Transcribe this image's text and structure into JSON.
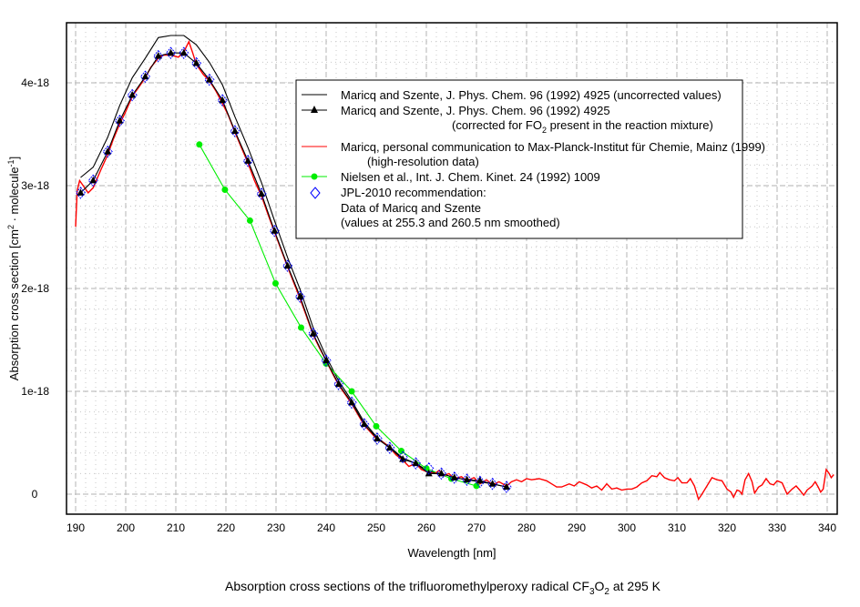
{
  "chart_data": {
    "type": "line",
    "title": {
      "pre": "Absorption cross sections of the trifluoromethylperoxy radical CF",
      "sub1": "3",
      "mid": "O",
      "sub2": "2",
      "post": " at 295 K"
    },
    "xlabel": "Wavelength [nm]",
    "ylabel": {
      "pre": "Absorption cross section [cm",
      "sup1": "2",
      "mid": " · molecule",
      "sup2": "-1",
      "post": "]"
    },
    "xlim": [
      188,
      342
    ],
    "ylim": [
      -2e-19,
      4.6e-18
    ],
    "x_ticks": [
      190,
      200,
      210,
      220,
      230,
      240,
      250,
      260,
      270,
      280,
      290,
      300,
      310,
      320,
      330,
      340
    ],
    "x_tick_labels": [
      "190",
      "200",
      "210",
      "220",
      "230",
      "240",
      "250",
      "260",
      "270",
      "280",
      "290",
      "300",
      "310",
      "320",
      "330",
      "340"
    ],
    "y_ticks": [
      0,
      1e-18,
      2e-18,
      3e-18,
      4e-18
    ],
    "y_tick_labels": [
      "0",
      "1e-18",
      "2e-18",
      "3e-18",
      "4e-18"
    ],
    "grid": true,
    "legend_position": "top-right",
    "y_unit_scale": 1e-18,
    "series": [
      {
        "name": "Maricq and Szente, J. Phys. Chem. 96 (1992) 4925 (uncorrected values)",
        "color": "#000000",
        "marker": "none",
        "points": [
          [
            191,
            3.08
          ],
          [
            193.5,
            3.18
          ],
          [
            196.4,
            3.47
          ],
          [
            198.8,
            3.78
          ],
          [
            201.3,
            4.05
          ],
          [
            203.9,
            4.24
          ],
          [
            206.5,
            4.44
          ],
          [
            209,
            4.46
          ],
          [
            211.6,
            4.46
          ],
          [
            214.1,
            4.37
          ],
          [
            216.7,
            4.2
          ],
          [
            219.3,
            3.98
          ],
          [
            221.8,
            3.67
          ],
          [
            224.4,
            3.37
          ],
          [
            227.1,
            3.03
          ],
          [
            229.7,
            2.66
          ],
          [
            232.3,
            2.3
          ],
          [
            234.8,
            1.99
          ],
          [
            237.4,
            1.62
          ],
          [
            240,
            1.34
          ],
          [
            242.5,
            1.1
          ],
          [
            245.1,
            0.91
          ],
          [
            247.6,
            0.7
          ],
          [
            250.2,
            0.55
          ],
          [
            252.7,
            0.46
          ],
          [
            255.3,
            0.35
          ],
          [
            257.9,
            0.3
          ],
          [
            260.5,
            0.22
          ],
          [
            263,
            0.2
          ],
          [
            265.6,
            0.16
          ],
          [
            268.1,
            0.14
          ],
          [
            270.7,
            0.12
          ],
          [
            273.2,
            0.1
          ],
          [
            276,
            0.07
          ]
        ]
      },
      {
        "name": "Maricq and Szente, J. Phys. Chem. 96 (1992) 4925",
        "name_line2": {
          "pre": "(corrected for FO",
          "sub": "2",
          "post": " present in the reaction mixture)"
        },
        "color": "#000000",
        "marker": "triangle",
        "points": [
          [
            191,
            2.93
          ],
          [
            193.5,
            3.05
          ],
          [
            196.4,
            3.33
          ],
          [
            198.8,
            3.63
          ],
          [
            201.3,
            3.88
          ],
          [
            203.9,
            4.06
          ],
          [
            206.5,
            4.26
          ],
          [
            209,
            4.29
          ],
          [
            211.6,
            4.29
          ],
          [
            214.1,
            4.19
          ],
          [
            216.7,
            4.03
          ],
          [
            219.3,
            3.83
          ],
          [
            221.8,
            3.53
          ],
          [
            224.4,
            3.24
          ],
          [
            227.1,
            2.92
          ],
          [
            229.7,
            2.56
          ],
          [
            232.3,
            2.22
          ],
          [
            234.8,
            1.92
          ],
          [
            237.4,
            1.56
          ],
          [
            240,
            1.3
          ],
          [
            242.5,
            1.07
          ],
          [
            245.1,
            0.89
          ],
          [
            247.6,
            0.68
          ],
          [
            250.2,
            0.54
          ],
          [
            252.7,
            0.45
          ],
          [
            255.3,
            0.34
          ],
          [
            257.9,
            0.3
          ],
          [
            260.5,
            0.2
          ],
          [
            263,
            0.2
          ],
          [
            265.6,
            0.16
          ],
          [
            268.1,
            0.14
          ],
          [
            270.7,
            0.13
          ],
          [
            273.2,
            0.1
          ],
          [
            276,
            0.07
          ]
        ]
      },
      {
        "name": "Maricq, personal communication to Max-Planck-Institut für Chemie, Mainz (1999)",
        "name_line2": "(high-resolution data)",
        "color": "#ff0000",
        "marker": "none",
        "points": [
          [
            190,
            2.6
          ],
          [
            190.3,
            2.95
          ],
          [
            190.8,
            3.05
          ],
          [
            191.5,
            3.0
          ],
          [
            192.5,
            2.93
          ],
          [
            193.5,
            2.98
          ],
          [
            195,
            3.15
          ],
          [
            196.4,
            3.3
          ],
          [
            197.5,
            3.45
          ],
          [
            198.8,
            3.6
          ],
          [
            200,
            3.72
          ],
          [
            201.3,
            3.87
          ],
          [
            202.5,
            3.95
          ],
          [
            203.9,
            4.05
          ],
          [
            205,
            4.15
          ],
          [
            206.5,
            4.24
          ],
          [
            207.5,
            4.27
          ],
          [
            209,
            4.27
          ],
          [
            210.5,
            4.25
          ],
          [
            211.6,
            4.3
          ],
          [
            212.6,
            4.4
          ],
          [
            213.3,
            4.3
          ],
          [
            214.1,
            4.18
          ],
          [
            215.5,
            4.08
          ],
          [
            216.7,
            4.02
          ],
          [
            218,
            3.92
          ],
          [
            219.3,
            3.8
          ],
          [
            220.5,
            3.68
          ],
          [
            221.8,
            3.52
          ],
          [
            223,
            3.38
          ],
          [
            224.4,
            3.22
          ],
          [
            225.7,
            3.05
          ],
          [
            227.1,
            2.9
          ],
          [
            228.4,
            2.72
          ],
          [
            229.7,
            2.55
          ],
          [
            231,
            2.38
          ],
          [
            232.3,
            2.21
          ],
          [
            233.5,
            2.06
          ],
          [
            234.8,
            1.9
          ],
          [
            236,
            1.74
          ],
          [
            237.4,
            1.55
          ],
          [
            238.7,
            1.42
          ],
          [
            240,
            1.3
          ],
          [
            241.2,
            1.18
          ],
          [
            242.5,
            1.06
          ],
          [
            243.8,
            0.97
          ],
          [
            245.1,
            0.88
          ],
          [
            246.4,
            0.77
          ],
          [
            247.6,
            0.67
          ],
          [
            248.9,
            0.6
          ],
          [
            250.2,
            0.53
          ],
          [
            251.5,
            0.5
          ],
          [
            252.7,
            0.45
          ],
          [
            254,
            0.38
          ],
          [
            255.3,
            0.33
          ],
          [
            256.5,
            0.27
          ],
          [
            257.9,
            0.3
          ],
          [
            259,
            0.24
          ],
          [
            260.5,
            0.21
          ],
          [
            261.7,
            0.2
          ],
          [
            262.5,
            0.23
          ],
          [
            263.5,
            0.18
          ],
          [
            264.5,
            0.2
          ],
          [
            265.6,
            0.15
          ],
          [
            267,
            0.17
          ],
          [
            268.1,
            0.13
          ],
          [
            269.5,
            0.16
          ],
          [
            270.7,
            0.1
          ],
          [
            272,
            0.14
          ],
          [
            273.2,
            0.09
          ],
          [
            274.5,
            0.12
          ],
          [
            276,
            0.08
          ],
          [
            277,
            0.12
          ],
          [
            278,
            0.14
          ],
          [
            279,
            0.12
          ],
          [
            280,
            0.15
          ],
          [
            281,
            0.14
          ],
          [
            282.5,
            0.15
          ],
          [
            284,
            0.13
          ],
          [
            285,
            0.1
          ],
          [
            286,
            0.07
          ],
          [
            287,
            0.07
          ],
          [
            288.5,
            0.1
          ],
          [
            289.5,
            0.08
          ],
          [
            290.5,
            0.12
          ],
          [
            292,
            0.09
          ],
          [
            293,
            0.06
          ],
          [
            294,
            0.08
          ],
          [
            295,
            0.04
          ],
          [
            296,
            0.1
          ],
          [
            297,
            0.05
          ],
          [
            298,
            0.06
          ],
          [
            299,
            0.04
          ],
          [
            300,
            0.05
          ],
          [
            301,
            0.05
          ],
          [
            302,
            0.07
          ],
          [
            303,
            0.11
          ],
          [
            304,
            0.13
          ],
          [
            305,
            0.18
          ],
          [
            306,
            0.17
          ],
          [
            306.6,
            0.21
          ],
          [
            307.5,
            0.16
          ],
          [
            308.5,
            0.14
          ],
          [
            309.5,
            0.13
          ],
          [
            310.2,
            0.16
          ],
          [
            311,
            0.11
          ],
          [
            312,
            0.11
          ],
          [
            312.7,
            0.15
          ],
          [
            313.5,
            0.08
          ],
          [
            314.3,
            -0.05
          ],
          [
            315,
            0.0
          ],
          [
            316,
            0.08
          ],
          [
            317,
            0.16
          ],
          [
            318,
            0.14
          ],
          [
            319,
            0.13
          ],
          [
            320,
            0.05
          ],
          [
            320.8,
            0.02
          ],
          [
            321.3,
            -0.03
          ],
          [
            322,
            0.04
          ],
          [
            322.5,
            0.03
          ],
          [
            323,
            0.0
          ],
          [
            323.6,
            0.14
          ],
          [
            324.3,
            0.2
          ],
          [
            325,
            0.12
          ],
          [
            325.5,
            0.01
          ],
          [
            326.3,
            0.07
          ],
          [
            327,
            0.09
          ],
          [
            327.8,
            0.15
          ],
          [
            328.6,
            0.1
          ],
          [
            329.3,
            0.09
          ],
          [
            330,
            0.13
          ],
          [
            331,
            0.11
          ],
          [
            332,
            0.0
          ],
          [
            333,
            0.05
          ],
          [
            333.8,
            0.08
          ],
          [
            334.5,
            0.04
          ],
          [
            335.3,
            -0.01
          ],
          [
            336,
            0.04
          ],
          [
            337,
            0.08
          ],
          [
            337.6,
            0.12
          ],
          [
            338.2,
            0.07
          ],
          [
            338.7,
            0.02
          ],
          [
            339.2,
            0.05
          ],
          [
            339.8,
            0.24
          ],
          [
            340.4,
            0.2
          ],
          [
            340.8,
            0.16
          ],
          [
            341.3,
            0.19
          ]
        ]
      },
      {
        "name": "Nielsen et al., Int. J. Chem. Kinet. 24 (1992) 1009",
        "color": "#00ee00",
        "marker": "circle",
        "points": [
          [
            214.7,
            3.4
          ],
          [
            219.8,
            2.96
          ],
          [
            224.8,
            2.66
          ],
          [
            229.9,
            2.05
          ],
          [
            235,
            1.62
          ],
          [
            240,
            1.27
          ],
          [
            245.1,
            1.0
          ],
          [
            250,
            0.66
          ],
          [
            255,
            0.42
          ],
          [
            260,
            0.25
          ],
          [
            265,
            0.15
          ],
          [
            270,
            0.08
          ]
        ]
      },
      {
        "name": "JPL-2010 recommendation:",
        "name_line2": "Data of Maricq and Szente",
        "name_line3": "(values at 255.3 and 260.5 nm smoothed)",
        "color": "#0000ff",
        "marker": "diamond",
        "points": [
          [
            191,
            2.93
          ],
          [
            193.5,
            3.05
          ],
          [
            196.4,
            3.33
          ],
          [
            198.8,
            3.63
          ],
          [
            201.3,
            3.88
          ],
          [
            203.9,
            4.06
          ],
          [
            206.5,
            4.26
          ],
          [
            209,
            4.29
          ],
          [
            211.6,
            4.29
          ],
          [
            214.1,
            4.19
          ],
          [
            216.7,
            4.03
          ],
          [
            219.3,
            3.83
          ],
          [
            221.8,
            3.53
          ],
          [
            224.4,
            3.24
          ],
          [
            227.1,
            2.92
          ],
          [
            229.7,
            2.56
          ],
          [
            232.3,
            2.22
          ],
          [
            234.8,
            1.92
          ],
          [
            237.4,
            1.56
          ],
          [
            240,
            1.3
          ],
          [
            242.5,
            1.07
          ],
          [
            245.1,
            0.89
          ],
          [
            247.6,
            0.68
          ],
          [
            250.2,
            0.54
          ],
          [
            252.7,
            0.45
          ],
          [
            255.3,
            0.36
          ],
          [
            257.9,
            0.3
          ],
          [
            260.5,
            0.25
          ],
          [
            263,
            0.2
          ],
          [
            265.6,
            0.16
          ],
          [
            268.1,
            0.14
          ],
          [
            270.7,
            0.12
          ],
          [
            273.2,
            0.1
          ],
          [
            276,
            0.07
          ]
        ]
      }
    ]
  }
}
